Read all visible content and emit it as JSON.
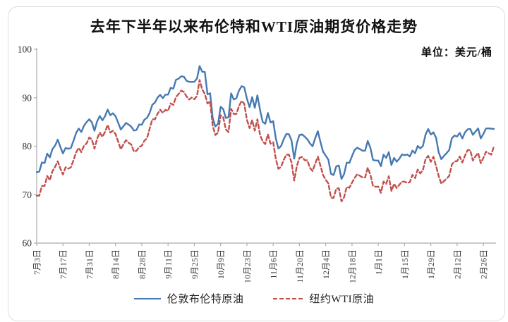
{
  "page": {
    "title": "去年下半年以来布伦特和WTI原油期货价格走势",
    "unit_label": "单位：美元/桶"
  },
  "chart_data": {
    "type": "line",
    "title": "去年下半年以来布伦特和WTI原油期货价格走势",
    "unit": "单位：美元/桶",
    "xlabel": "",
    "ylabel": "",
    "ylim": [
      60,
      100
    ],
    "y_ticks": [
      60,
      70,
      80,
      90,
      100
    ],
    "grid": false,
    "legend_position": "bottom",
    "axis_color": "#ababab",
    "x_tick_labels": [
      "7月3日",
      "7月17日",
      "7月31日",
      "8月14日",
      "8月28日",
      "9月11日",
      "9月25日",
      "10月9日",
      "10月23日",
      "11月6日",
      "11月20日",
      "12月4日",
      "12月18日",
      "1月1日",
      "1月15日",
      "1月29日",
      "2月12日",
      "2月26日"
    ],
    "x_points_per_tick": 10,
    "series": [
      {
        "name": "伦敦布伦特原油",
        "color": "#4679B2",
        "dash": "solid",
        "values": [
          74.65,
          74.77,
          76.65,
          76.52,
          78.47,
          77.69,
          79.4,
          80.11,
          81.36,
          79.87,
          78.5,
          79.63,
          79.46,
          79.64,
          81.07,
          82.74,
          83.64,
          82.92,
          84.24,
          84.99,
          85.56,
          84.91,
          83.2,
          85.14,
          86.24,
          85.34,
          86.17,
          87.55,
          86.4,
          86.81,
          86.21,
          84.89,
          83.45,
          84.12,
          84.8,
          84.46,
          84.03,
          83.21,
          83.36,
          84.48,
          84.42,
          85.49,
          85.86,
          86.86,
          88.55,
          89.0,
          90.04,
          90.6,
          89.92,
          90.65,
          90.64,
          92.06,
          91.88,
          93.7,
          93.93,
          94.43,
          94.34,
          93.53,
          93.3,
          93.27,
          93.29,
          93.96,
          96.55,
          95.38,
          95.31,
          90.71,
          90.92,
          85.81,
          84.07,
          84.58,
          88.15,
          87.65,
          85.82,
          86.0,
          90.89,
          89.65,
          89.9,
          91.5,
          92.38,
          92.16,
          89.83,
          88.07,
          90.13,
          87.93,
          90.48,
          87.45,
          85.02,
          84.63,
          86.85,
          84.89,
          85.18,
          81.61,
          79.54,
          80.01,
          81.43,
          82.52,
          82.47,
          81.18,
          77.42,
          80.61,
          82.32,
          82.45,
          81.96,
          81.42,
          80.58,
          79.98,
          81.68,
          83.1,
          80.86,
          78.88,
          78.03,
          77.2,
          74.3,
          74.05,
          75.84,
          76.03,
          73.24,
          74.26,
          76.61,
          76.55,
          77.95,
          79.23,
          79.7,
          79.39,
          79.07,
          79.07,
          81.07,
          79.65,
          77.15,
          77.04,
          77.04,
          75.89,
          78.25,
          77.59,
          78.76,
          76.12,
          77.59,
          76.8,
          77.41,
          78.29,
          78.15,
          78.29,
          77.88,
          79.1,
          78.56,
          80.06,
          79.55,
          80.04,
          82.43,
          83.55,
          82.4,
          82.87,
          81.71,
          78.7,
          77.33,
          77.99,
          78.59,
          79.21,
          81.63,
          82.19,
          82.0,
          82.77,
          81.6,
          82.86,
          83.47,
          83.56,
          82.34,
          83.03,
          83.67,
          81.62,
          82.53,
          83.65,
          83.68,
          83.62,
          83.55
        ]
      },
      {
        "name": "纽约WTI原油",
        "color": "#C0504D",
        "dash": "dashed",
        "values": [
          69.79,
          69.79,
          71.79,
          71.8,
          73.86,
          72.99,
          74.83,
          75.75,
          76.89,
          75.42,
          74.15,
          75.66,
          75.35,
          75.63,
          77.07,
          78.74,
          79.63,
          78.78,
          80.09,
          80.58,
          81.8,
          81.37,
          79.49,
          81.55,
          82.82,
          81.94,
          82.92,
          84.4,
          82.82,
          83.19,
          82.51,
          80.99,
          79.38,
          80.39,
          81.25,
          80.72,
          80.35,
          78.89,
          79.05,
          79.83,
          80.1,
          81.16,
          81.63,
          83.63,
          85.55,
          85.55,
          86.69,
          87.54,
          86.87,
          87.51,
          87.29,
          88.84,
          88.52,
          90.16,
          90.77,
          91.48,
          91.2,
          90.28,
          89.63,
          90.03,
          89.68,
          90.39,
          93.68,
          91.71,
          90.79,
          88.82,
          89.23,
          84.22,
          82.31,
          82.79,
          86.38,
          85.97,
          83.49,
          82.91,
          87.69,
          86.66,
          86.66,
          88.32,
          89.37,
          88.75,
          85.49,
          83.74,
          85.39,
          83.21,
          85.54,
          82.31,
          81.02,
          80.44,
          82.46,
          80.51,
          80.82,
          77.37,
          75.33,
          75.74,
          77.17,
          78.26,
          78.26,
          76.66,
          72.9,
          75.89,
          77.6,
          77.77,
          77.1,
          77.1,
          75.54,
          74.86,
          76.41,
          77.86,
          75.96,
          74.07,
          73.04,
          72.32,
          69.38,
          69.34,
          71.23,
          71.32,
          68.61,
          69.47,
          71.58,
          71.43,
          72.47,
          73.44,
          74.22,
          73.89,
          73.56,
          73.56,
          75.57,
          74.11,
          71.77,
          71.65,
          71.65,
          70.38,
          72.7,
          72.19,
          73.81,
          70.77,
          72.24,
          71.37,
          72.02,
          72.68,
          72.68,
          72.4,
          72.56,
          74.08,
          73.41,
          75.19,
          74.37,
          75.09,
          77.36,
          78.01,
          76.78,
          77.82,
          75.85,
          73.82,
          72.28,
          72.78,
          73.31,
          73.86,
          76.22,
          76.84,
          76.92,
          77.87,
          76.64,
          78.03,
          79.19,
          79.19,
          77.04,
          77.91,
          78.61,
          76.49,
          77.58,
          78.87,
          78.54,
          78.26,
          79.97
        ]
      }
    ]
  }
}
